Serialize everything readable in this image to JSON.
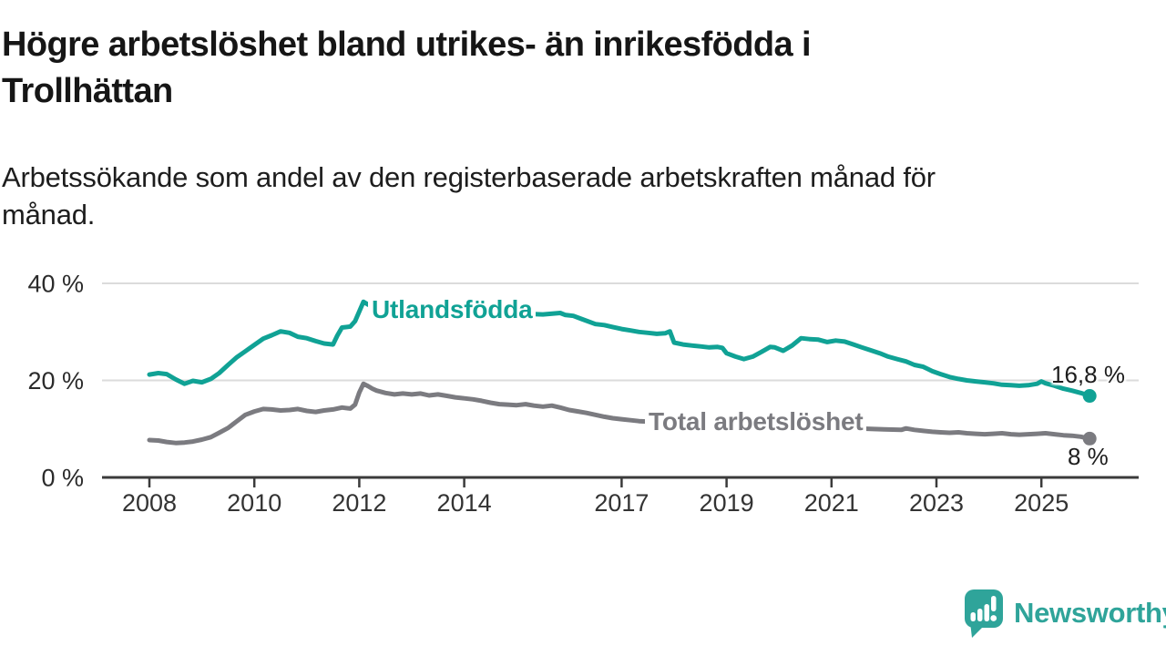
{
  "title": {
    "lines": [
      "Högre arbetslöshet bland utrikes- än inrikesfödda i",
      "Trollhättan"
    ]
  },
  "subtitle": {
    "lines": [
      "Arbetssökande som andel av den registerbaserade arbetskraften månad för",
      "månad."
    ]
  },
  "chart_data": {
    "type": "line",
    "title": "Högre arbetslöshet bland utrikes- än inrikesfödda i Trollhättan",
    "xlabel": "",
    "ylabel": "Arbetssökande som andel av den registerbaserade arbetskraften",
    "grid": "horizontal",
    "legend_position": "inline-labels-on-lines",
    "x_axis": {
      "unit": "year-month",
      "range": [
        2008.0,
        2025.92
      ],
      "ticks": [
        2008,
        2010,
        2012,
        2014,
        2017,
        2019,
        2021,
        2023,
        2025
      ],
      "tick_labels": [
        "2008",
        "2010",
        "2012",
        "2014",
        "2017",
        "2019",
        "2021",
        "2023",
        "2025"
      ]
    },
    "y_axis": {
      "unit": "%",
      "ylim": [
        0,
        42
      ],
      "ticks": [
        {
          "value": 40,
          "label": "40 %"
        },
        {
          "value": 20,
          "label": "20 %"
        },
        {
          "value": 0,
          "label": "0 %"
        }
      ]
    },
    "series": [
      {
        "name": "Utlandsfödda",
        "color": "#10A295",
        "end_label": "16,8 %",
        "end_value": 16.8,
        "points": [
          [
            2008.0,
            21.2
          ],
          [
            2008.17,
            21.5
          ],
          [
            2008.33,
            21.3
          ],
          [
            2008.5,
            20.2
          ],
          [
            2008.67,
            19.3
          ],
          [
            2008.83,
            19.9
          ],
          [
            2009.0,
            19.6
          ],
          [
            2009.17,
            20.3
          ],
          [
            2009.33,
            21.5
          ],
          [
            2009.5,
            23.2
          ],
          [
            2009.67,
            24.8
          ],
          [
            2009.83,
            26.0
          ],
          [
            2010.0,
            27.3
          ],
          [
            2010.17,
            28.6
          ],
          [
            2010.33,
            29.3
          ],
          [
            2010.5,
            30.1
          ],
          [
            2010.67,
            29.8
          ],
          [
            2010.83,
            29.0
          ],
          [
            2011.0,
            28.7
          ],
          [
            2011.17,
            28.1
          ],
          [
            2011.33,
            27.6
          ],
          [
            2011.5,
            27.4
          ],
          [
            2011.58,
            29.2
          ],
          [
            2011.67,
            30.9
          ],
          [
            2011.83,
            31.1
          ],
          [
            2011.92,
            32.2
          ],
          [
            2012.0,
            34.2
          ],
          [
            2012.08,
            36.2
          ],
          [
            2012.17,
            35.6
          ],
          [
            2012.25,
            35.4
          ],
          [
            2012.33,
            35.6
          ],
          [
            2012.5,
            35.3
          ],
          [
            2012.75,
            35.1
          ],
          [
            2013.0,
            35.0
          ],
          [
            2013.5,
            34.5
          ],
          [
            2014.0,
            34.1
          ],
          [
            2014.5,
            33.9
          ],
          [
            2015.0,
            33.8
          ],
          [
            2015.5,
            33.6
          ],
          [
            2015.83,
            33.9
          ],
          [
            2015.92,
            33.5
          ],
          [
            2016.08,
            33.3
          ],
          [
            2016.25,
            32.6
          ],
          [
            2016.5,
            31.6
          ],
          [
            2016.67,
            31.4
          ],
          [
            2016.83,
            31.0
          ],
          [
            2017.0,
            30.6
          ],
          [
            2017.17,
            30.3
          ],
          [
            2017.33,
            30.0
          ],
          [
            2017.5,
            29.8
          ],
          [
            2017.67,
            29.6
          ],
          [
            2017.83,
            29.7
          ],
          [
            2017.92,
            30.1
          ],
          [
            2018.0,
            27.8
          ],
          [
            2018.17,
            27.4
          ],
          [
            2018.33,
            27.2
          ],
          [
            2018.5,
            27.0
          ],
          [
            2018.67,
            26.8
          ],
          [
            2018.83,
            26.9
          ],
          [
            2018.92,
            26.7
          ],
          [
            2019.0,
            25.6
          ],
          [
            2019.17,
            24.9
          ],
          [
            2019.33,
            24.4
          ],
          [
            2019.5,
            24.9
          ],
          [
            2019.67,
            25.9
          ],
          [
            2019.83,
            26.9
          ],
          [
            2019.92,
            26.8
          ],
          [
            2020.08,
            26.1
          ],
          [
            2020.25,
            27.2
          ],
          [
            2020.42,
            28.7
          ],
          [
            2020.58,
            28.5
          ],
          [
            2020.75,
            28.4
          ],
          [
            2020.92,
            27.9
          ],
          [
            2021.08,
            28.2
          ],
          [
            2021.25,
            28.0
          ],
          [
            2021.42,
            27.4
          ],
          [
            2021.58,
            26.8
          ],
          [
            2021.75,
            26.2
          ],
          [
            2021.92,
            25.6
          ],
          [
            2022.08,
            24.9
          ],
          [
            2022.25,
            24.4
          ],
          [
            2022.42,
            23.9
          ],
          [
            2022.58,
            23.2
          ],
          [
            2022.75,
            22.8
          ],
          [
            2022.92,
            21.9
          ],
          [
            2023.08,
            21.3
          ],
          [
            2023.25,
            20.7
          ],
          [
            2023.42,
            20.3
          ],
          [
            2023.58,
            20.0
          ],
          [
            2023.75,
            19.8
          ],
          [
            2023.92,
            19.6
          ],
          [
            2024.08,
            19.4
          ],
          [
            2024.25,
            19.1
          ],
          [
            2024.42,
            19.0
          ],
          [
            2024.58,
            18.9
          ],
          [
            2024.75,
            19.0
          ],
          [
            2024.92,
            19.3
          ],
          [
            2025.0,
            19.8
          ],
          [
            2025.08,
            19.4
          ],
          [
            2025.25,
            18.9
          ],
          [
            2025.42,
            18.3
          ],
          [
            2025.58,
            17.9
          ],
          [
            2025.75,
            17.4
          ],
          [
            2025.92,
            16.8
          ]
        ]
      },
      {
        "name": "Total arbetslöshet",
        "color": "#7B7B80",
        "end_label": "8 %",
        "end_value": 8.0,
        "points": [
          [
            2008.0,
            7.7
          ],
          [
            2008.17,
            7.6
          ],
          [
            2008.33,
            7.3
          ],
          [
            2008.5,
            7.1
          ],
          [
            2008.67,
            7.2
          ],
          [
            2008.83,
            7.4
          ],
          [
            2009.0,
            7.8
          ],
          [
            2009.17,
            8.3
          ],
          [
            2009.33,
            9.2
          ],
          [
            2009.5,
            10.2
          ],
          [
            2009.67,
            11.6
          ],
          [
            2009.83,
            12.9
          ],
          [
            2010.0,
            13.6
          ],
          [
            2010.17,
            14.1
          ],
          [
            2010.33,
            14.0
          ],
          [
            2010.5,
            13.8
          ],
          [
            2010.67,
            13.9
          ],
          [
            2010.83,
            14.1
          ],
          [
            2011.0,
            13.7
          ],
          [
            2011.17,
            13.5
          ],
          [
            2011.33,
            13.8
          ],
          [
            2011.5,
            14.0
          ],
          [
            2011.67,
            14.4
          ],
          [
            2011.83,
            14.2
          ],
          [
            2011.92,
            15.0
          ],
          [
            2012.0,
            17.5
          ],
          [
            2012.08,
            19.3
          ],
          [
            2012.17,
            18.8
          ],
          [
            2012.25,
            18.3
          ],
          [
            2012.33,
            17.9
          ],
          [
            2012.5,
            17.4
          ],
          [
            2012.67,
            17.1
          ],
          [
            2012.83,
            17.3
          ],
          [
            2013.0,
            17.1
          ],
          [
            2013.17,
            17.3
          ],
          [
            2013.33,
            16.9
          ],
          [
            2013.5,
            17.1
          ],
          [
            2013.67,
            16.8
          ],
          [
            2013.83,
            16.5
          ],
          [
            2014.0,
            16.3
          ],
          [
            2014.17,
            16.1
          ],
          [
            2014.33,
            15.8
          ],
          [
            2014.5,
            15.4
          ],
          [
            2014.67,
            15.1
          ],
          [
            2014.83,
            15.0
          ],
          [
            2015.0,
            14.9
          ],
          [
            2015.17,
            15.1
          ],
          [
            2015.33,
            14.8
          ],
          [
            2015.5,
            14.6
          ],
          [
            2015.67,
            14.8
          ],
          [
            2015.83,
            14.4
          ],
          [
            2016.0,
            13.9
          ],
          [
            2016.17,
            13.6
          ],
          [
            2016.33,
            13.3
          ],
          [
            2016.5,
            12.9
          ],
          [
            2016.67,
            12.5
          ],
          [
            2016.83,
            12.2
          ],
          [
            2017.0,
            12.0
          ],
          [
            2017.17,
            11.8
          ],
          [
            2017.33,
            11.6
          ],
          [
            2017.5,
            11.5
          ],
          [
            2018.0,
            11.0
          ],
          [
            2018.5,
            10.7
          ],
          [
            2019.0,
            10.4
          ],
          [
            2019.5,
            10.2
          ],
          [
            2020.0,
            10.8
          ],
          [
            2020.5,
            11.0
          ],
          [
            2021.0,
            10.6
          ],
          [
            2021.5,
            10.1
          ],
          [
            2022.0,
            9.9
          ],
          [
            2022.33,
            9.8
          ],
          [
            2022.42,
            10.1
          ],
          [
            2022.58,
            9.8
          ],
          [
            2022.75,
            9.6
          ],
          [
            2022.92,
            9.4
          ],
          [
            2023.08,
            9.3
          ],
          [
            2023.25,
            9.2
          ],
          [
            2023.42,
            9.3
          ],
          [
            2023.58,
            9.1
          ],
          [
            2023.75,
            9.0
          ],
          [
            2023.92,
            8.9
          ],
          [
            2024.08,
            9.0
          ],
          [
            2024.25,
            9.1
          ],
          [
            2024.42,
            8.9
          ],
          [
            2024.58,
            8.8
          ],
          [
            2024.75,
            8.9
          ],
          [
            2024.92,
            9.0
          ],
          [
            2025.08,
            9.1
          ],
          [
            2025.25,
            8.9
          ],
          [
            2025.42,
            8.7
          ],
          [
            2025.58,
            8.6
          ],
          [
            2025.75,
            8.4
          ],
          [
            2025.92,
            8.0
          ]
        ]
      }
    ],
    "colors": {
      "gridline": "#DBDBDB",
      "axis": "#3B3B3B",
      "tick_text": "#333333",
      "y_label_text": "#2B2B2B",
      "end_label_text": "#1D1D1D"
    }
  },
  "branding": {
    "logo_text": "Newsworthy",
    "logo_icon": "bar-chart-speech-bubble-icon",
    "logo_color": "#2FA49A"
  }
}
